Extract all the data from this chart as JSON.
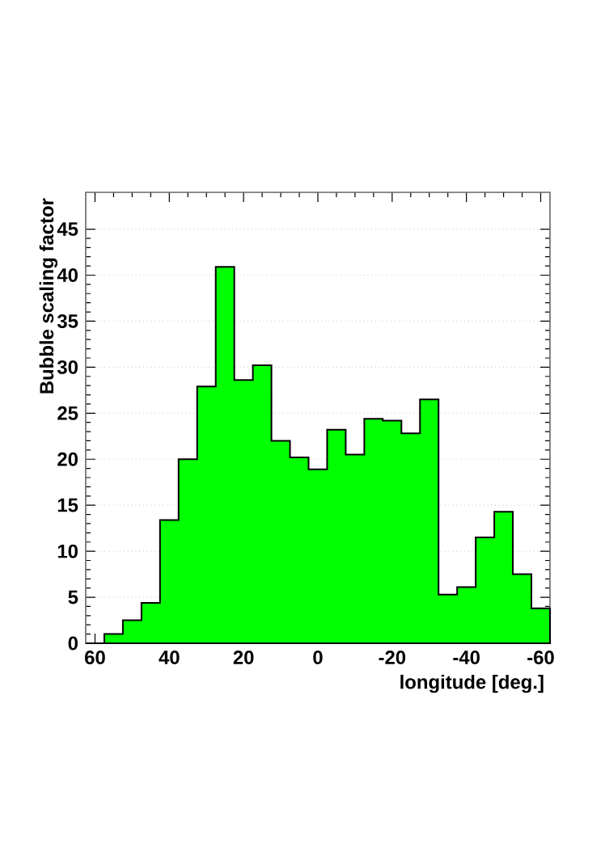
{
  "chart_data": {
    "type": "histogram",
    "xlabel": "longitude [deg.]",
    "ylabel": "Bubble scaling factor",
    "bins": [
      62.5,
      57.5,
      52.5,
      47.5,
      42.5,
      37.5,
      32.5,
      27.5,
      22.5,
      17.5,
      12.5,
      7.5,
      2.5,
      -2.5,
      -7.5,
      -12.5,
      -17.5,
      -22.5,
      -27.5,
      -32.5,
      -37.5,
      -42.5,
      -47.5,
      -52.5,
      -57.5,
      -62.5
    ],
    "values": [
      0,
      1.0,
      2.5,
      4.4,
      13.4,
      20.0,
      27.9,
      40.9,
      28.6,
      30.2,
      22.0,
      20.2,
      18.9,
      23.2,
      20.5,
      24.4,
      24.2,
      22.8,
      26.5,
      5.3,
      6.1,
      11.5,
      14.3,
      7.5,
      3.8
    ],
    "color": "#00ff00",
    "xlim": [
      62.5,
      -62.5
    ],
    "ylim": [
      0,
      49
    ],
    "xticks": [
      60,
      40,
      20,
      0,
      -20,
      -40,
      -60
    ],
    "yticks": [
      0,
      5,
      10,
      15,
      20,
      25,
      30,
      35,
      40,
      45
    ],
    "grid": "y"
  }
}
